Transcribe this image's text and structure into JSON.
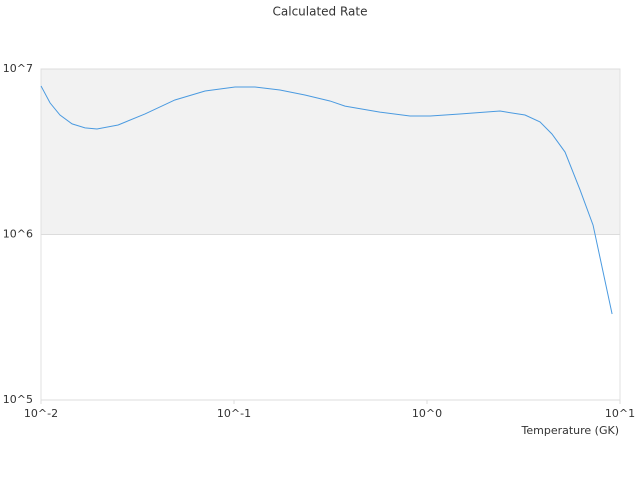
{
  "chart_data": {
    "type": "line",
    "title": "Calculated Rate",
    "x_label": "Temperature (GK)",
    "x": [
      0.01,
      0.01114,
      0.01254,
      0.01449,
      0.0169,
      0.0195,
      0.0251,
      0.0346,
      0.0494,
      0.0708,
      0.1012,
      0.1285,
      0.173,
      0.233,
      0.314,
      0.376,
      0.57,
      0.816,
      1.04,
      1.48,
      2.39,
      3.22,
      3.85,
      4.44,
      5.19,
      6.21,
      7.25,
      9.1
    ],
    "values": [
      7900000,
      6240000,
      5270000,
      4660000,
      4410000,
      4340000,
      4590000,
      5350000,
      6500000,
      7360000,
      7780000,
      7780000,
      7470000,
      6960000,
      6410000,
      5970000,
      5490000,
      5200000,
      5200000,
      5350000,
      5570000,
      5270000,
      4790000,
      4050000,
      3150000,
      1860000,
      1140000,
      331000
    ],
    "color": "#4a9ae0",
    "xscale": "log",
    "yscale": "log",
    "xlim": [
      0.01,
      10
    ],
    "ylim": [
      100000,
      10000000
    ],
    "xticks": [
      {
        "value": 0.01,
        "label": "10^-2"
      },
      {
        "value": 0.1,
        "label": "10^-1"
      },
      {
        "value": 1,
        "label": "10^0"
      },
      {
        "value": 10,
        "label": "10^1"
      }
    ],
    "yticks": [
      {
        "value": 100000,
        "label": "10^5"
      },
      {
        "value": 1000000,
        "label": "10^6"
      },
      {
        "value": 10000000,
        "label": "10^7"
      }
    ],
    "grid": true,
    "alternate_bands": true
  }
}
